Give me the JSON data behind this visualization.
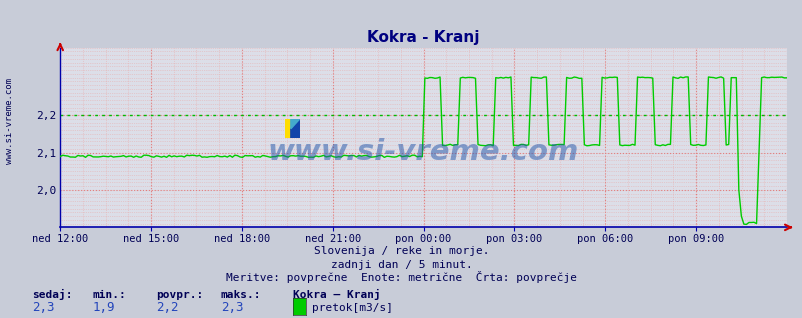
{
  "title": "Kokra - Kranj",
  "title_color": "#000080",
  "bg_color": "#c8ccd8",
  "plot_bg_color": "#dcdee8",
  "grid_major_color": "#e08080",
  "grid_minor_color": "#e8b0b0",
  "avg_line_color": "#00bb00",
  "line_color": "#00cc00",
  "axis_color": "#0000aa",
  "tick_label_color": "#000055",
  "ylabel_ticks": [
    2.0,
    2.1,
    2.2
  ],
  "ytop": 2.38,
  "ybottom": 1.9,
  "avg_value": 2.2,
  "xlabel_ticks": [
    "ned 12:00",
    "ned 15:00",
    "ned 18:00",
    "ned 21:00",
    "pon 00:00",
    "pon 03:00",
    "pon 06:00",
    "pon 09:00"
  ],
  "subtitle1": "Slovenija / reke in morje.",
  "subtitle2": "zadnji dan / 5 minut.",
  "subtitle3": "Meritve: povprečne  Enote: metrične  Črta: povprečje",
  "footer_labels": [
    "sedaj:",
    "min.:",
    "povpr.:",
    "maks.:"
  ],
  "footer_values": [
    "2,3",
    "1,9",
    "2,2",
    "2,3"
  ],
  "footer_station": "Kokra – Kranj",
  "footer_legend": "pretok[m3/s]",
  "watermark": "www.si-vreme.com",
  "watermark_color": "#2255aa",
  "sidebar_text": "www.si-vreme.com"
}
